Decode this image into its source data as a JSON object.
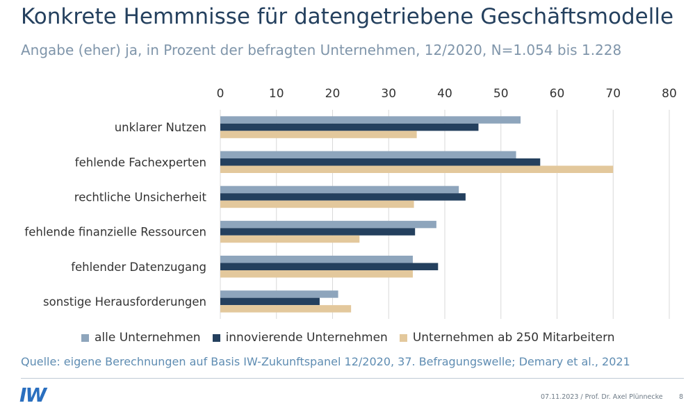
{
  "header": {
    "title": "Konkrete Hemmnisse für datengetriebene Geschäftsmodelle",
    "subtitle": "Angabe (eher) ja, in Prozent der befragten Unternehmen, 12/2020, N=1.054 bis 1.228"
  },
  "chart_data": {
    "type": "bar",
    "orientation": "horizontal",
    "categories": [
      "unklarer Nutzen",
      "fehlende Fachexperten",
      "rechtliche Unsicherheit",
      "fehlende finanzielle Ressourcen",
      "fehlender Datenzugang",
      "sonstige Herausforderungen"
    ],
    "series": [
      {
        "name": "alle Unternehmen",
        "color": "#8ea5bc",
        "values": [
          53.5,
          52.7,
          42.5,
          38.5,
          34.3,
          21.0
        ]
      },
      {
        "name": "innovierende Unternehmen",
        "color": "#24405e",
        "values": [
          46.0,
          57.0,
          43.7,
          34.7,
          38.8,
          17.7
        ]
      },
      {
        "name": "Unternehmen ab 250 Mitarbeitern",
        "color": "#e3c89c",
        "values": [
          35.0,
          70.0,
          34.5,
          24.8,
          34.3,
          23.3
        ]
      }
    ],
    "xlim": [
      0,
      80
    ],
    "xticks": [
      "0",
      "10",
      "20",
      "30",
      "40",
      "50",
      "60",
      "70",
      "80"
    ],
    "title": "",
    "xlabel": "",
    "ylabel": "",
    "grid": true,
    "legend_position": "bottom"
  },
  "footer": {
    "source": "Quelle: eigene Berechnungen auf Basis IW-Zukunftspanel 12/2020, 37. Befragungswelle; Demary et al., 2021",
    "logo": "IW",
    "date_author": "07.11.2023 / Prof. Dr. Axel Plünnecke",
    "page_number": "8"
  }
}
